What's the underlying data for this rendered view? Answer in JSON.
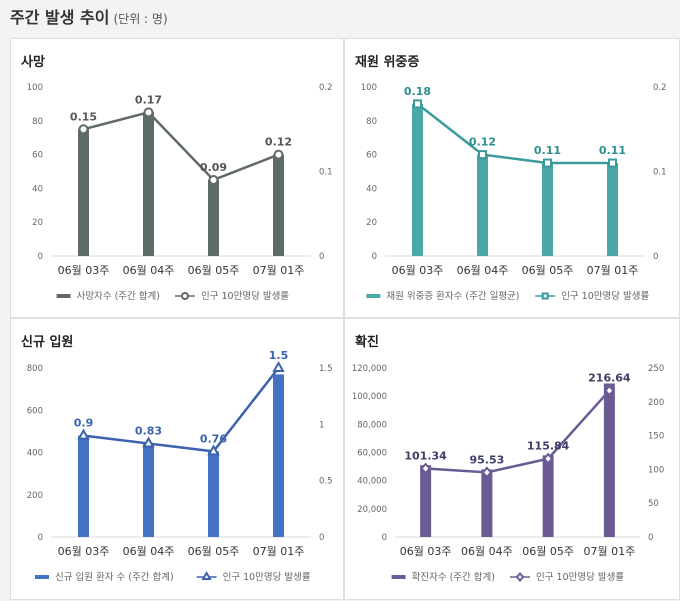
{
  "page": {
    "title": "주간 발생 추이",
    "unit": "(단위 : 명)"
  },
  "chart_data": [
    {
      "id": "death",
      "type": "bar",
      "title": "사망",
      "categories": [
        "06월 03주",
        "06월 04주",
        "06월 05주",
        "07월 01주"
      ],
      "bar_color": "#5f6b68",
      "line_color": "#5f6b68",
      "label_color": "#555555",
      "marker": "circle",
      "ylim_left": [
        0,
        100
      ],
      "left_ticks": [
        "0",
        "20",
        "40",
        "60",
        "80",
        "100"
      ],
      "left_tick_values": [
        0,
        20,
        40,
        60,
        80,
        100
      ],
      "ylim_right": [
        0,
        0.2
      ],
      "right_ticks": [
        "0",
        "0.1",
        "0.2"
      ],
      "right_tick_values": [
        0,
        0.1,
        0.2
      ],
      "series": [
        {
          "name": "사망자수 (주간 합계)",
          "kind": "bar",
          "axis": "left",
          "values": [
            75,
            85,
            45,
            60
          ]
        },
        {
          "name": "인구 10만명당 발생률",
          "kind": "line",
          "axis": "right",
          "values": [
            0.15,
            0.17,
            0.09,
            0.12
          ],
          "labels": [
            "0.15",
            "0.17",
            "0.09",
            "0.12"
          ]
        }
      ]
    },
    {
      "id": "icu",
      "type": "bar",
      "title": "재원 위중증",
      "categories": [
        "06월 03주",
        "06월 04주",
        "06월 05주",
        "07월 01주"
      ],
      "bar_color": "#4aa8a8",
      "line_color": "#3b9a9a",
      "label_color": "#2e8f8f",
      "marker": "square",
      "ylim_left": [
        0,
        100
      ],
      "left_ticks": [
        "0",
        "20",
        "40",
        "60",
        "80",
        "100"
      ],
      "left_tick_values": [
        0,
        20,
        40,
        60,
        80,
        100
      ],
      "ylim_right": [
        0,
        0.2
      ],
      "right_ticks": [
        "0",
        "0.1",
        "0.2"
      ],
      "right_tick_values": [
        0,
        0.1,
        0.2
      ],
      "series": [
        {
          "name": "재원 위중증 환자수 (주간 일평균)",
          "kind": "bar",
          "axis": "left",
          "values": [
            90,
            60,
            56,
            55
          ]
        },
        {
          "name": "인구 10만명당 발생률",
          "kind": "line",
          "axis": "right",
          "values": [
            0.18,
            0.12,
            0.11,
            0.11
          ],
          "labels": [
            "0.18",
            "0.12",
            "0.11",
            "0.11"
          ]
        }
      ]
    },
    {
      "id": "admission",
      "type": "bar",
      "title": "신규 입원",
      "categories": [
        "06월 03주",
        "06월 04주",
        "06월 05주",
        "07월 01주"
      ],
      "bar_color": "#4472c4",
      "line_color": "#3d62ad",
      "label_color": "#3a62ad",
      "marker": "triangle",
      "ylim_left": [
        0,
        800
      ],
      "left_ticks": [
        "0",
        "200",
        "400",
        "600",
        "800"
      ],
      "left_tick_values": [
        0,
        200,
        400,
        600,
        800
      ],
      "ylim_right": [
        0,
        1.5
      ],
      "right_ticks": [
        "0",
        "0.5",
        "1",
        "1.5"
      ],
      "right_tick_values": [
        0,
        0.5,
        1,
        1.5
      ],
      "series": [
        {
          "name": "신규 입원 환자 수 (주간 합계)",
          "kind": "bar",
          "axis": "left",
          "values": [
            480,
            440,
            405,
            770
          ]
        },
        {
          "name": "인구 10만명당 발생률",
          "kind": "line",
          "axis": "right",
          "values": [
            0.9,
            0.83,
            0.76,
            1.5
          ],
          "labels": [
            "0.9",
            "0.83",
            "0.76",
            "1.5"
          ]
        }
      ]
    },
    {
      "id": "confirmed",
      "type": "bar",
      "title": "확진",
      "categories": [
        "06월 03주",
        "06월 04주",
        "06월 05주",
        "07월 01주"
      ],
      "bar_color": "#6b5b95",
      "line_color": "#6b5b95",
      "label_color": "#3f3f6b",
      "marker": "diamond",
      "ylim_left": [
        0,
        120000
      ],
      "left_ticks": [
        "0",
        "20,000",
        "40,000",
        "60,000",
        "80,000",
        "100,000",
        "120,000"
      ],
      "left_tick_values": [
        0,
        20000,
        40000,
        60000,
        80000,
        100000,
        120000
      ],
      "ylim_right": [
        0,
        250
      ],
      "right_ticks": [
        "0",
        "50",
        "100",
        "150",
        "200",
        "250"
      ],
      "right_tick_values": [
        0,
        50,
        100,
        150,
        200,
        250
      ],
      "series": [
        {
          "name": "확진자수 (주간 합계)",
          "kind": "bar",
          "axis": "left",
          "values": [
            51000,
            48000,
            58000,
            109000
          ]
        },
        {
          "name": "인구 10만명당 발생률",
          "kind": "line",
          "axis": "right",
          "values": [
            101.34,
            95.53,
            115.84,
            216.64
          ],
          "labels": [
            "101.34",
            "95.53",
            "115.84",
            "216.64"
          ]
        }
      ]
    }
  ]
}
